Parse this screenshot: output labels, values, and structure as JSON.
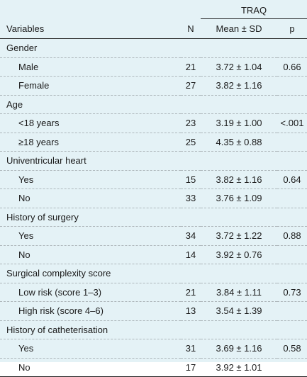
{
  "header": {
    "variables": "Variables",
    "n": "N",
    "traq": "TRAQ",
    "mean_sd": "Mean ± SD",
    "p": "p"
  },
  "rows": [
    {
      "type": "group",
      "label": "Gender"
    },
    {
      "type": "sub",
      "label": "Male",
      "n": "21",
      "mean": "3.72 ± 1.04",
      "p": "0.66"
    },
    {
      "type": "sub",
      "label": "Female",
      "n": "27",
      "mean": "3.82 ± 1.16",
      "p": ""
    },
    {
      "type": "group",
      "label": "Age"
    },
    {
      "type": "sub",
      "label": "<18 years",
      "n": "23",
      "mean": "3.19 ± 1.00",
      "p": "<.001"
    },
    {
      "type": "sub",
      "label": "≥18 years",
      "n": "25",
      "mean": "4.35 ± 0.88",
      "p": ""
    },
    {
      "type": "group",
      "label": "Univentricular heart"
    },
    {
      "type": "sub",
      "label": "Yes",
      "n": "15",
      "mean": "3.82 ± 1.16",
      "p": "0.64"
    },
    {
      "type": "sub",
      "label": "No",
      "n": "33",
      "mean": "3.76 ± 1.09",
      "p": ""
    },
    {
      "type": "group",
      "label": "History of surgery"
    },
    {
      "type": "sub",
      "label": "Yes",
      "n": "34",
      "mean": "3.72 ± 1.22",
      "p": "0.88"
    },
    {
      "type": "sub",
      "label": "No",
      "n": "14",
      "mean": "3.92 ± 0.76",
      "p": ""
    },
    {
      "type": "group",
      "label": "Surgical complexity score"
    },
    {
      "type": "sub",
      "label": "Low risk (score 1–3)",
      "n": "21",
      "mean": "3.84 ± 1.11",
      "p": "0.73"
    },
    {
      "type": "sub",
      "label": "High risk (score 4–6)",
      "n": "13",
      "mean": "3.54 ± 1.39",
      "p": ""
    },
    {
      "type": "group",
      "label": "History of catheterisation"
    },
    {
      "type": "sub",
      "label": "Yes",
      "n": "31",
      "mean": "3.69 ± 1.16",
      "p": "0.58"
    },
    {
      "type": "sub",
      "label": "No",
      "n": "17",
      "mean": "3.92 ± 1.01",
      "p": ""
    }
  ]
}
